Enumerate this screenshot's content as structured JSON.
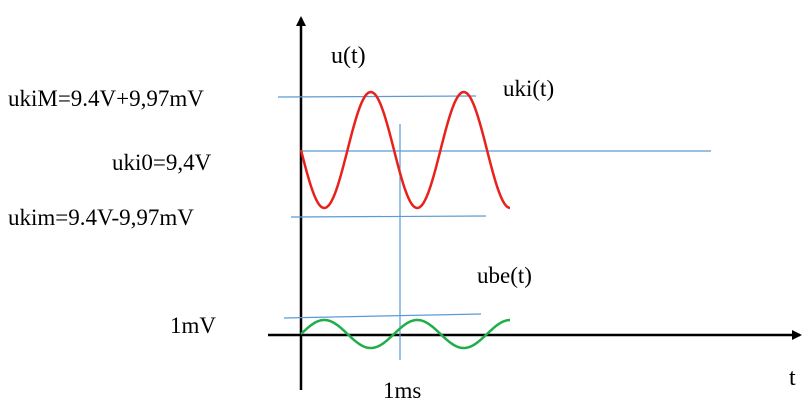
{
  "labels": {
    "y_axis": "u(t)",
    "x_axis": "t",
    "uki_max": "ukiM=9.4V+9,97mV",
    "uki_dc": "uki0=9,4V",
    "uki_min": "ukim=9.4V-9,97mV",
    "uki_signal": "uki(t)",
    "ube_signal": "ube(t)",
    "ube_amp": "1mV",
    "time_mark": "1ms"
  },
  "colors": {
    "axis": "#000000",
    "guide": "#5b9bd5",
    "uki": "#e8211c",
    "ube": "#1fae4a"
  },
  "signals": {
    "uki": {
      "dc_level_V": 9.4,
      "amplitude_mV": 9.97,
      "cycles_shown": 2.25,
      "start_phase": "zero, falling"
    },
    "ube": {
      "amplitude_mV": 1,
      "cycles_shown": 2.25,
      "start_phase": "zero, rising"
    },
    "period_ms": 1
  }
}
